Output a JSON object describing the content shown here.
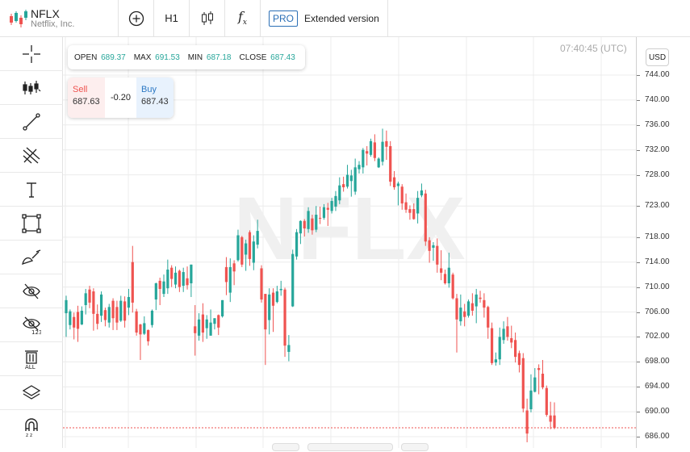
{
  "symbol": {
    "ticker": "NFLX",
    "name": "Netflix, Inc.",
    "logo_icon": "candlestick-logo-icon"
  },
  "toolbar": {
    "add_icon": "plus-circle-icon",
    "interval": "H1",
    "chart_type_icon": "candles-icon",
    "indicator_icon": "fx-icon",
    "pro_badge": "PRO",
    "extended_label": "Extended version"
  },
  "sidebar": {
    "tools": [
      {
        "name": "crosshair-icon"
      },
      {
        "name": "indicators-icon"
      },
      {
        "name": "trend-line-icon"
      },
      {
        "name": "pitchfork-icon"
      },
      {
        "name": "text-tool-icon"
      },
      {
        "name": "shapes-icon"
      },
      {
        "name": "brush-icon"
      },
      {
        "name": "hide-drawings-icon"
      },
      {
        "name": "hide-indicators-icon"
      },
      {
        "name": "delete-all-icon"
      },
      {
        "name": "layers-icon"
      },
      {
        "name": "magnet-icon"
      }
    ]
  },
  "ohlc": {
    "open_label": "OPEN",
    "open": "689.37",
    "max_label": "MAX",
    "max": "691.53",
    "min_label": "MIN",
    "min": "687.18",
    "close_label": "CLOSE",
    "close": "687.43"
  },
  "trade": {
    "sell_label": "Sell",
    "sell_price": "687.63",
    "spread": "-0.20",
    "buy_label": "Buy",
    "buy_price": "687.43"
  },
  "clock": "07:40:45 (UTC)",
  "currency": "USD",
  "watermark": "NFLX",
  "colors": {
    "up": "#26a69a",
    "down": "#ef5350",
    "accent": "#2b6fb6",
    "last_price_line": "#ef5350"
  },
  "chart_data": {
    "type": "candlestick",
    "y_ticks": [
      "744.00",
      "740.00",
      "736.00",
      "732.00",
      "728.00",
      "723.00",
      "718.00",
      "714.00",
      "710.00",
      "706.00",
      "702.00",
      "698.00",
      "694.00",
      "690.00",
      "686.00"
    ],
    "ylim": [
      684,
      748
    ],
    "last_price": 687.43,
    "bars": [
      [
        705.8,
        707.9,
        702.0,
        708.6
      ],
      [
        703.9,
        706.1,
        703.2,
        706.4
      ],
      [
        705.2,
        703.5,
        701.6,
        705.9
      ],
      [
        706.0,
        703.3,
        701.2,
        707.0
      ],
      [
        704.0,
        706.2,
        703.9,
        706.9
      ],
      [
        707.1,
        709.0,
        705.6,
        709.7
      ],
      [
        709.6,
        707.5,
        706.6,
        710.2
      ],
      [
        709.3,
        705.7,
        703.0,
        709.8
      ],
      [
        705.7,
        704.1,
        703.2,
        707.2
      ],
      [
        705.4,
        708.8,
        704.4,
        709.3
      ],
      [
        706.3,
        704.7,
        703.7,
        706.7
      ],
      [
        704.3,
        706.8,
        703.5,
        707.3
      ],
      [
        707.8,
        705.0,
        703.1,
        708.2
      ],
      [
        706.8,
        704.3,
        703.1,
        707.8
      ],
      [
        704.6,
        707.8,
        704.4,
        708.6
      ],
      [
        707.7,
        704.6,
        703.5,
        708.5
      ],
      [
        706.7,
        708.4,
        705.5,
        709.7
      ],
      [
        714.0,
        707.5,
        705.9,
        716.6
      ],
      [
        706.1,
        702.7,
        702.2,
        706.5
      ],
      [
        704.0,
        702.4,
        698.3,
        704.1
      ],
      [
        702.5,
        704.2,
        702.3,
        705.3
      ],
      [
        703.1,
        701.3,
        700.6,
        703.2
      ],
      [
        703.9,
        706.2,
        703.5,
        706.4
      ],
      [
        708.0,
        710.6,
        706.3,
        710.7
      ],
      [
        711.0,
        709.7,
        707.1,
        711.5
      ],
      [
        708.9,
        710.9,
        708.4,
        712.0
      ],
      [
        709.8,
        712.8,
        708.9,
        714.4
      ],
      [
        713.1,
        711.3,
        710.0,
        713.5
      ],
      [
        710.4,
        712.3,
        709.8,
        713.3
      ],
      [
        712.6,
        710.0,
        709.2,
        712.8
      ],
      [
        710.2,
        712.4,
        709.2,
        713.1
      ],
      [
        711.4,
        710.3,
        709.6,
        713.3
      ],
      [
        710.6,
        713.6,
        708.4,
        713.6
      ],
      [
        703.7,
        702.6,
        699.0,
        707.1
      ],
      [
        702.2,
        704.8,
        701.4,
        705.8
      ],
      [
        705.6,
        702.7,
        701.2,
        707.4
      ],
      [
        703.4,
        704.8,
        701.7,
        705.5
      ],
      [
        702.2,
        704.3,
        702.2,
        706.4
      ],
      [
        704.1,
        705.0,
        703.2,
        705.0
      ],
      [
        705.5,
        703.5,
        702.3,
        705.6
      ],
      [
        705.3,
        707.9,
        705.1,
        707.9
      ],
      [
        713.2,
        710.8,
        708.7,
        714.8
      ],
      [
        709.1,
        713.2,
        707.6,
        714.6
      ],
      [
        713.8,
        712.5,
        710.3,
        714.3
      ],
      [
        714.3,
        718.3,
        714.1,
        719.2
      ],
      [
        718.0,
        713.6,
        713.2,
        718.2
      ],
      [
        715.2,
        717.0,
        712.6,
        717.6
      ],
      [
        718.8,
        714.5,
        713.4,
        719.1
      ],
      [
        713.9,
        717.3,
        712.7,
        718.3
      ],
      [
        716.8,
        719.0,
        716.2,
        720.8
      ],
      [
        713.0,
        708.0,
        707.5,
        713.5
      ],
      [
        708.9,
        703.2,
        697.5,
        708.9
      ],
      [
        704.7,
        708.8,
        702.4,
        709.8
      ],
      [
        709.1,
        707.0,
        702.8,
        709.8
      ],
      [
        707.6,
        709.3,
        707.4,
        710.2
      ],
      [
        709.5,
        709.7,
        708.6,
        711.0
      ],
      [
        709.6,
        700.6,
        698.8,
        709.9
      ],
      [
        699.6,
        700.7,
        698.1,
        702.3
      ],
      [
        706.9,
        715.3,
        706.8,
        716.0
      ],
      [
        714.9,
        718.8,
        714.4,
        719.3
      ],
      [
        718.6,
        720.6,
        716.9,
        720.7
      ],
      [
        720.6,
        719.4,
        718.1,
        720.9
      ],
      [
        719.3,
        722.2,
        718.7,
        722.8
      ],
      [
        721.0,
        719.1,
        718.4,
        721.6
      ],
      [
        719.2,
        721.6,
        718.8,
        723.0
      ],
      [
        721.1,
        721.0,
        720.1,
        722.9
      ],
      [
        721.1,
        722.8,
        720.8,
        723.3
      ],
      [
        722.7,
        722.4,
        719.8,
        723.5
      ],
      [
        722.2,
        723.8,
        721.8,
        724.3
      ],
      [
        722.9,
        724.6,
        722.2,
        725.4
      ],
      [
        723.9,
        726.3,
        723.3,
        727.6
      ],
      [
        726.5,
        726.0,
        725.3,
        727.7
      ],
      [
        726.1,
        728.0,
        725.8,
        729.6
      ],
      [
        727.0,
        727.9,
        724.5,
        728.8
      ],
      [
        725.3,
        729.2,
        724.8,
        730.6
      ],
      [
        728.9,
        729.6,
        728.2,
        730.2
      ],
      [
        729.2,
        732.0,
        728.2,
        732.3
      ],
      [
        731.8,
        731.4,
        729.5,
        732.6
      ],
      [
        731.2,
        733.4,
        730.9,
        733.8
      ],
      [
        733.2,
        730.7,
        730.2,
        734.5
      ],
      [
        729.2,
        730.6,
        729.1,
        730.8
      ],
      [
        730.1,
        733.3,
        729.5,
        735.4
      ],
      [
        733.4,
        732.5,
        730.4,
        735.1
      ],
      [
        732.6,
        726.9,
        726.2,
        733.4
      ],
      [
        727.6,
        726.0,
        725.6,
        728.6
      ],
      [
        726.2,
        726.6,
        723.1,
        726.9
      ],
      [
        726.1,
        723.4,
        722.4,
        726.5
      ],
      [
        723.6,
        722.4,
        721.9,
        725.0
      ],
      [
        722.5,
        721.9,
        720.8,
        723.1
      ],
      [
        722.5,
        720.9,
        720.8,
        723.4
      ],
      [
        721.8,
        724.3,
        720.2,
        725.4
      ],
      [
        724.7,
        725.5,
        724.4,
        726.6
      ],
      [
        725.0,
        717.3,
        716.6,
        725.6
      ],
      [
        717.5,
        715.8,
        713.9,
        718.0
      ],
      [
        716.3,
        716.7,
        714.2,
        717.2
      ],
      [
        716.6,
        713.6,
        712.3,
        717.8
      ],
      [
        713.0,
        712.3,
        711.1,
        715.9
      ],
      [
        712.1,
        710.6,
        710.4,
        712.8
      ],
      [
        710.6,
        713.1,
        709.9,
        715.5
      ],
      [
        712.0,
        708.2,
        708.0,
        712.3
      ],
      [
        708.2,
        704.8,
        699.5,
        708.9
      ],
      [
        704.5,
        706.7,
        703.8,
        708.8
      ],
      [
        706.1,
        705.2,
        703.7,
        707.3
      ],
      [
        705.4,
        707.7,
        705.1,
        708.0
      ],
      [
        707.4,
        706.2,
        705.4,
        709.0
      ],
      [
        706.9,
        708.8,
        704.2,
        709.7
      ],
      [
        708.3,
        708.1,
        707.5,
        709.4
      ],
      [
        707.9,
        706.7,
        705.1,
        709.0
      ],
      [
        706.8,
        703.5,
        701.7,
        707.0
      ],
      [
        703.4,
        697.8,
        697.5,
        704.3
      ],
      [
        697.9,
        698.4,
        697.4,
        699.5
      ],
      [
        698.4,
        702.0,
        697.5,
        703.5
      ],
      [
        701.5,
        703.3,
        700.9,
        704.5
      ],
      [
        703.7,
        702.0,
        701.4,
        705.2
      ],
      [
        701.8,
        701.1,
        700.2,
        703.8
      ],
      [
        701.5,
        698.8,
        697.9,
        702.7
      ],
      [
        699.4,
        697.5,
        696.3,
        699.8
      ],
      [
        698.6,
        690.5,
        689.9,
        699.4
      ],
      [
        690.2,
        686.5,
        685.1,
        692.1
      ],
      [
        690.4,
        693.4,
        689.9,
        696.0
      ],
      [
        693.2,
        695.5,
        693.1,
        697.0
      ],
      [
        697.0,
        696.7,
        692.8,
        697.6
      ],
      [
        696.1,
        693.9,
        693.6,
        698.3
      ],
      [
        693.8,
        689.5,
        689.2,
        694.2
      ],
      [
        689.4,
        688.4,
        687.2,
        691.6
      ],
      [
        689.4,
        687.4,
        687.2,
        691.5
      ]
    ]
  }
}
